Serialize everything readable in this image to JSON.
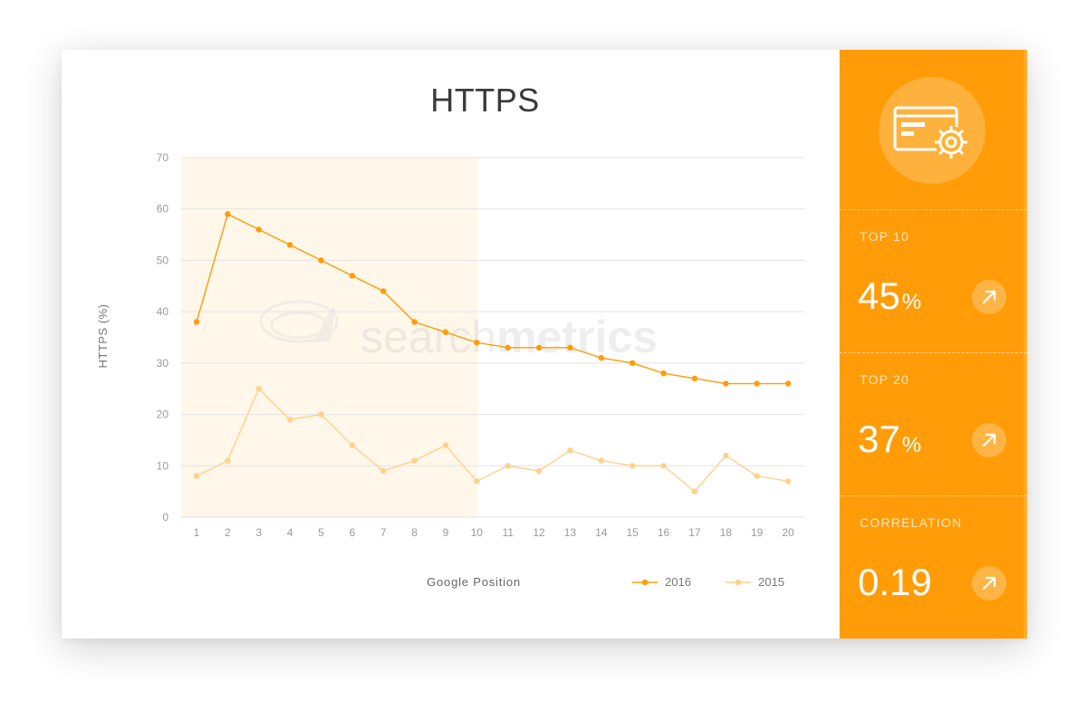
{
  "sidebar": {
    "icon": "web-settings-icon",
    "accent_color": "#ff9c08",
    "stats": [
      {
        "label": "TOP 10",
        "value": "45",
        "unit": "%",
        "trend_icon": "arrow-up-right-icon"
      },
      {
        "label": "TOP 20",
        "value": "37",
        "unit": "%",
        "trend_icon": "arrow-up-right-icon"
      },
      {
        "label": "CORRELATION",
        "value": "0.19",
        "unit": "",
        "trend_icon": "arrow-up-right-icon"
      }
    ]
  },
  "watermark": {
    "text_light": "search",
    "text_bold": "metrics"
  },
  "chart_data": {
    "type": "line",
    "title": "HTTPS",
    "xlabel": "Google Position",
    "ylabel": "HTTPS (%)",
    "x": [
      1,
      2,
      3,
      4,
      5,
      6,
      7,
      8,
      9,
      10,
      11,
      12,
      13,
      14,
      15,
      16,
      17,
      18,
      19,
      20
    ],
    "xticks": [
      "1",
      "2",
      "3",
      "4",
      "5",
      "6",
      "7",
      "8",
      "9",
      "10",
      "11",
      "12",
      "13",
      "14",
      "15",
      "16",
      "17",
      "18",
      "19",
      "20"
    ],
    "ylim": [
      0,
      70
    ],
    "yticks": [
      "0",
      "10",
      "20",
      "30",
      "40",
      "50",
      "60",
      "70"
    ],
    "grid": true,
    "highlight_range": [
      1,
      10
    ],
    "legend_position": "bottom-right",
    "series": [
      {
        "name": "2016",
        "color": "#ff9c08",
        "values": [
          38,
          59,
          56,
          53,
          50,
          47,
          44,
          38,
          36,
          34,
          33,
          33,
          33,
          31,
          30,
          28,
          27,
          26,
          26,
          26
        ]
      },
      {
        "name": "2015",
        "color": "#ffd18c",
        "values": [
          8,
          11,
          25,
          19,
          20,
          14,
          9,
          11,
          14,
          7,
          10,
          9,
          13,
          11,
          10,
          10,
          5,
          12,
          8,
          7
        ]
      }
    ]
  }
}
